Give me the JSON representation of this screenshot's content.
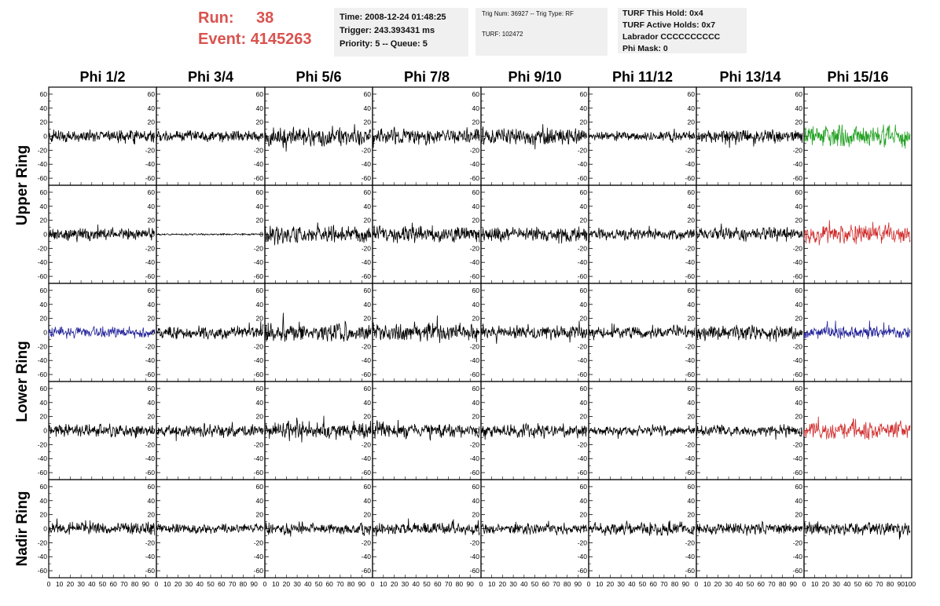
{
  "header": {
    "run_label": "Run:",
    "run_value": "38",
    "event_label": "Event:",
    "event_value": "4145263",
    "time": "Time: 2008-12-24 01:48:25",
    "trigger": "Trigger: 243.393431 ms",
    "priority": "Priority: 5 -- Queue: 5",
    "trig_num": "Trig Num: 36927 -- Trig Type: RF",
    "turf": "TURF: 102472",
    "turf_this_hold": "TURF This Hold: 0x4",
    "turf_active_holds": "TURF Active Holds: 0x7",
    "labrador": "Labrador CCCCCCCCCC",
    "phi_mask": "Phi Mask: 0"
  },
  "chart_data": {
    "type": "line",
    "layout": "8 columns x 5 rows of waveform panels",
    "columns": [
      "Phi 1/2",
      "Phi 3/4",
      "Phi 5/6",
      "Phi 7/8",
      "Phi 9/10",
      "Phi 11/12",
      "Phi 13/14",
      "Phi 15/16"
    ],
    "rows": [
      "Upper Ring",
      "Upper Ring",
      "Lower Ring",
      "Lower Ring",
      "Nadir Ring"
    ],
    "row_labels": [
      {
        "text": "Upper Ring",
        "rows": [
          0,
          1
        ]
      },
      {
        "text": "Lower Ring",
        "rows": [
          2,
          3
        ]
      },
      {
        "text": "Nadir Ring",
        "rows": [
          4
        ]
      }
    ],
    "xlim": [
      0,
      100
    ],
    "ylim": [
      -70,
      70
    ],
    "yticks": [
      -60,
      -40,
      -20,
      0,
      20,
      40,
      60
    ],
    "xticks": [
      0,
      10,
      20,
      30,
      40,
      50,
      60,
      70,
      80,
      90,
      100
    ],
    "x_end_label": "100",
    "samples_per_trace": 260,
    "colors": {
      "default": "#000000",
      "green": "#22a022",
      "red": "#d02a2a",
      "blue": "#22229a"
    },
    "highlighted_panels": [
      {
        "row": 0,
        "col": 7,
        "color": "green"
      },
      {
        "row": 1,
        "col": 7,
        "color": "red"
      },
      {
        "row": 2,
        "col": 0,
        "color": "blue"
      },
      {
        "row": 2,
        "col": 7,
        "color": "blue"
      },
      {
        "row": 3,
        "col": 7,
        "color": "red"
      }
    ],
    "trace_amplitude": [
      [
        14,
        12,
        20,
        16,
        18,
        10,
        14,
        22
      ],
      [
        14,
        2,
        18,
        18,
        14,
        12,
        14,
        20
      ],
      [
        12,
        14,
        20,
        20,
        14,
        12,
        16,
        14
      ],
      [
        14,
        14,
        20,
        16,
        14,
        10,
        12,
        18
      ],
      [
        14,
        10,
        12,
        14,
        12,
        14,
        12,
        14
      ]
    ]
  }
}
